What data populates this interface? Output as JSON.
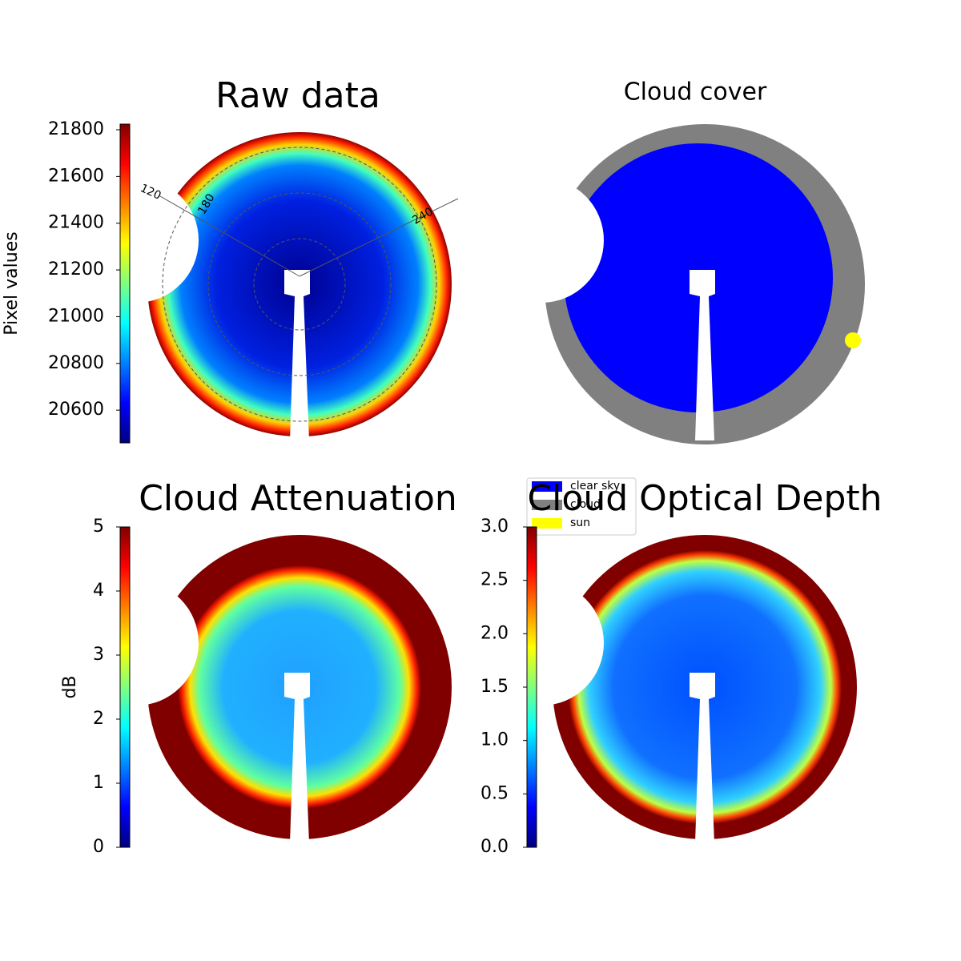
{
  "chart_data": [
    {
      "type": "image",
      "title": "Raw data",
      "colormap": "jet",
      "colorbar": {
        "label": "Pixel values",
        "lim": [
          20460,
          21824
        ],
        "ticks": [
          20600,
          20800,
          21000,
          21200,
          21400,
          21600,
          21800
        ]
      },
      "annotations": [
        "120",
        "180",
        "240"
      ]
    },
    {
      "type": "categorical",
      "title": "Cloud cover",
      "legend": [
        {
          "name": "clear sky",
          "color": "#0000ff"
        },
        {
          "name": "cloud",
          "color": "#808080"
        },
        {
          "name": "sun",
          "color": "#ffff00"
        }
      ]
    },
    {
      "type": "image",
      "title": "Cloud Attenuation",
      "colormap": "jet",
      "colorbar": {
        "label": "dB",
        "lim": [
          0,
          5
        ],
        "ticks": [
          0,
          1,
          2,
          3,
          4,
          5
        ]
      }
    },
    {
      "type": "image",
      "title": "Cloud Optical Depth",
      "colormap": "jet",
      "colorbar": {
        "lim": [
          0,
          3
        ],
        "ticks": [
          {
            "value": 0,
            "label": "0.0"
          },
          {
            "value": 0.5,
            "label": "0.5"
          },
          {
            "value": 1,
            "label": "1.0"
          },
          {
            "value": 1.5,
            "label": "1.5"
          },
          {
            "value": 2,
            "label": "2.0"
          },
          {
            "value": 2.5,
            "label": "2.5"
          },
          {
            "value": 3,
            "label": "3.0"
          }
        ]
      }
    }
  ]
}
